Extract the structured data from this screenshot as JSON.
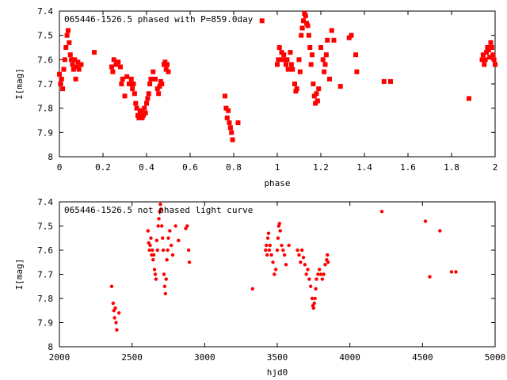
{
  "chart_data": [
    {
      "type": "scatter",
      "title": "065446-1526.5 phased with P=859.0day",
      "xlabel": "phase",
      "ylabel": "I[mag]",
      "xlim": [
        0,
        2
      ],
      "ylim": [
        7.4,
        8.0
      ],
      "y_inverted": true,
      "xticks": [
        0,
        0.2,
        0.4,
        0.6,
        0.8,
        1,
        1.2,
        1.4,
        1.6,
        1.8,
        2
      ],
      "xtick_labels": [
        "0",
        "0.2",
        "0.4",
        "0.6",
        "0.8",
        "1",
        "1.2",
        "1.4",
        "1.6",
        "1.8",
        "2"
      ],
      "yticks": [
        7.4,
        7.5,
        7.6,
        7.7,
        7.8,
        7.9,
        8.0
      ],
      "ytick_labels": [
        "7.4",
        "7.5",
        "7.6",
        "7.7",
        "7.8",
        "7.9",
        "8"
      ],
      "marker_color": "#ff0000",
      "grid": false,
      "series": [
        {
          "points": [
            [
              0.0,
              7.66
            ],
            [
              0.005,
              7.7
            ],
            [
              0.01,
              7.68
            ],
            [
              0.015,
              7.72
            ],
            [
              0.02,
              7.64
            ],
            [
              0.025,
              7.6
            ],
            [
              0.03,
              7.55
            ],
            [
              0.035,
              7.5
            ],
            [
              0.04,
              7.48
            ],
            [
              0.045,
              7.53
            ],
            [
              0.05,
              7.58
            ],
            [
              0.055,
              7.6
            ],
            [
              0.06,
              7.62
            ],
            [
              0.065,
              7.64
            ],
            [
              0.07,
              7.6
            ],
            [
              0.075,
              7.68
            ],
            [
              0.08,
              7.63
            ],
            [
              0.085,
              7.61
            ],
            [
              0.09,
              7.64
            ],
            [
              0.1,
              7.62
            ],
            [
              0.16,
              7.57
            ],
            [
              0.24,
              7.63
            ],
            [
              0.245,
              7.65
            ],
            [
              0.25,
              7.6
            ],
            [
              0.26,
              7.62
            ],
            [
              0.27,
              7.61
            ],
            [
              0.28,
              7.63
            ],
            [
              0.285,
              7.7
            ],
            [
              0.29,
              7.68
            ],
            [
              0.3,
              7.75
            ],
            [
              0.31,
              7.67
            ],
            [
              0.32,
              7.7
            ],
            [
              0.33,
              7.68
            ],
            [
              0.335,
              7.72
            ],
            [
              0.34,
              7.7
            ],
            [
              0.345,
              7.74
            ],
            [
              0.35,
              7.78
            ],
            [
              0.355,
              7.8
            ],
            [
              0.36,
              7.83
            ],
            [
              0.365,
              7.84
            ],
            [
              0.37,
              7.82
            ],
            [
              0.375,
              7.81
            ],
            [
              0.38,
              7.84
            ],
            [
              0.385,
              7.83
            ],
            [
              0.39,
              7.8
            ],
            [
              0.395,
              7.82
            ],
            [
              0.4,
              7.78
            ],
            [
              0.405,
              7.76
            ],
            [
              0.41,
              7.74
            ],
            [
              0.415,
              7.7
            ],
            [
              0.42,
              7.68
            ],
            [
              0.43,
              7.65
            ],
            [
              0.44,
              7.68
            ],
            [
              0.45,
              7.72
            ],
            [
              0.455,
              7.74
            ],
            [
              0.46,
              7.71
            ],
            [
              0.465,
              7.69
            ],
            [
              0.47,
              7.7
            ],
            [
              0.48,
              7.62
            ],
            [
              0.485,
              7.61
            ],
            [
              0.49,
              7.64
            ],
            [
              0.495,
              7.62
            ],
            [
              0.5,
              7.65
            ],
            [
              0.76,
              7.75
            ],
            [
              0.765,
              7.8
            ],
            [
              0.77,
              7.84
            ],
            [
              0.775,
              7.81
            ],
            [
              0.78,
              7.86
            ],
            [
              0.785,
              7.88
            ],
            [
              0.79,
              7.9
            ],
            [
              0.795,
              7.93
            ],
            [
              0.82,
              7.86
            ],
            [
              0.93,
              7.44
            ],
            [
              1.0,
              7.62
            ],
            [
              1.005,
              7.6
            ],
            [
              1.01,
              7.55
            ],
            [
              1.02,
              7.57
            ],
            [
              1.025,
              7.6
            ],
            [
              1.03,
              7.58
            ],
            [
              1.04,
              7.62
            ],
            [
              1.045,
              7.6
            ],
            [
              1.05,
              7.64
            ],
            [
              1.06,
              7.57
            ],
            [
              1.065,
              7.62
            ],
            [
              1.07,
              7.64
            ],
            [
              1.08,
              7.7
            ],
            [
              1.085,
              7.73
            ],
            [
              1.09,
              7.72
            ],
            [
              1.1,
              7.6
            ],
            [
              1.105,
              7.65
            ],
            [
              1.11,
              7.5
            ],
            [
              1.115,
              7.47
            ],
            [
              1.12,
              7.44
            ],
            [
              1.125,
              7.41
            ],
            [
              1.13,
              7.42
            ],
            [
              1.135,
              7.45
            ],
            [
              1.14,
              7.46
            ],
            [
              1.145,
              7.5
            ],
            [
              1.15,
              7.55
            ],
            [
              1.155,
              7.62
            ],
            [
              1.16,
              7.58
            ],
            [
              1.165,
              7.7
            ],
            [
              1.17,
              7.75
            ],
            [
              1.175,
              7.78
            ],
            [
              1.18,
              7.74
            ],
            [
              1.185,
              7.77
            ],
            [
              1.19,
              7.72
            ],
            [
              1.2,
              7.55
            ],
            [
              1.21,
              7.6
            ],
            [
              1.215,
              7.65
            ],
            [
              1.22,
              7.62
            ],
            [
              1.225,
              7.58
            ],
            [
              1.23,
              7.52
            ],
            [
              1.24,
              7.68
            ],
            [
              1.25,
              7.48
            ],
            [
              1.26,
              7.52
            ],
            [
              1.29,
              7.71
            ],
            [
              1.33,
              7.51
            ],
            [
              1.34,
              7.5
            ],
            [
              1.36,
              7.58
            ],
            [
              1.365,
              7.65
            ],
            [
              1.49,
              7.69
            ],
            [
              1.52,
              7.69
            ],
            [
              1.88,
              7.76
            ],
            [
              1.94,
              7.6
            ],
            [
              1.945,
              7.58
            ],
            [
              1.95,
              7.62
            ],
            [
              1.955,
              7.6
            ],
            [
              1.96,
              7.57
            ],
            [
              1.965,
              7.55
            ],
            [
              1.97,
              7.56
            ],
            [
              1.975,
              7.59
            ],
            [
              1.98,
              7.53
            ],
            [
              1.985,
              7.55
            ],
            [
              1.99,
              7.58
            ],
            [
              1.995,
              7.6
            ],
            [
              2.0,
              7.62
            ]
          ]
        }
      ]
    },
    {
      "type": "scatter",
      "title": "065446-1526.5 not phased light curve",
      "xlabel": "hjd0",
      "ylabel": "I[mag]",
      "xlim": [
        2000,
        5000
      ],
      "ylim": [
        7.4,
        8.0
      ],
      "y_inverted": true,
      "xticks": [
        2000,
        2500,
        3000,
        3500,
        4000,
        4500,
        5000
      ],
      "xtick_labels": [
        "2000",
        "2500",
        "3000",
        "3500",
        "4000",
        "4500",
        "5000"
      ],
      "yticks": [
        7.4,
        7.5,
        7.6,
        7.7,
        7.8,
        7.9,
        8.0
      ],
      "ytick_labels": [
        "7.4",
        "7.5",
        "7.6",
        "7.7",
        "7.8",
        "7.9",
        "8"
      ],
      "marker_color": "#ff0000",
      "grid": false,
      "series": [
        {
          "points": [
            [
              2360,
              7.75
            ],
            [
              2370,
              7.82
            ],
            [
              2375,
              7.85
            ],
            [
              2380,
              7.88
            ],
            [
              2385,
              7.84
            ],
            [
              2390,
              7.9
            ],
            [
              2395,
              7.93
            ],
            [
              2410,
              7.86
            ],
            [
              2610,
              7.52
            ],
            [
              2615,
              7.57
            ],
            [
              2620,
              7.6
            ],
            [
              2625,
              7.58
            ],
            [
              2630,
              7.55
            ],
            [
              2635,
              7.62
            ],
            [
              2640,
              7.6
            ],
            [
              2645,
              7.64
            ],
            [
              2650,
              7.62
            ],
            [
              2655,
              7.68
            ],
            [
              2660,
              7.7
            ],
            [
              2665,
              7.72
            ],
            [
              2670,
              7.56
            ],
            [
              2675,
              7.6
            ],
            [
              2680,
              7.5
            ],
            [
              2685,
              7.47
            ],
            [
              2690,
              7.44
            ],
            [
              2695,
              7.41
            ],
            [
              2700,
              7.43
            ],
            [
              2705,
              7.5
            ],
            [
              2710,
              7.55
            ],
            [
              2715,
              7.6
            ],
            [
              2720,
              7.7
            ],
            [
              2725,
              7.75
            ],
            [
              2730,
              7.78
            ],
            [
              2735,
              7.72
            ],
            [
              2740,
              7.64
            ],
            [
              2745,
              7.6
            ],
            [
              2750,
              7.55
            ],
            [
              2760,
              7.52
            ],
            [
              2770,
              7.58
            ],
            [
              2780,
              7.62
            ],
            [
              2800,
              7.5
            ],
            [
              2820,
              7.56
            ],
            [
              2870,
              7.51
            ],
            [
              2880,
              7.5
            ],
            [
              2890,
              7.6
            ],
            [
              2895,
              7.65
            ],
            [
              3330,
              7.76
            ],
            [
              3420,
              7.6
            ],
            [
              3425,
              7.58
            ],
            [
              3430,
              7.62
            ],
            [
              3435,
              7.55
            ],
            [
              3440,
              7.53
            ],
            [
              3445,
              7.6
            ],
            [
              3450,
              7.58
            ],
            [
              3460,
              7.62
            ],
            [
              3470,
              7.65
            ],
            [
              3480,
              7.7
            ],
            [
              3490,
              7.68
            ],
            [
              3500,
              7.6
            ],
            [
              3505,
              7.55
            ],
            [
              3510,
              7.5
            ],
            [
              3515,
              7.49
            ],
            [
              3520,
              7.52
            ],
            [
              3530,
              7.58
            ],
            [
              3540,
              7.6
            ],
            [
              3550,
              7.62
            ],
            [
              3560,
              7.66
            ],
            [
              3580,
              7.58
            ],
            [
              3640,
              7.6
            ],
            [
              3650,
              7.62
            ],
            [
              3660,
              7.65
            ],
            [
              3670,
              7.6
            ],
            [
              3680,
              7.63
            ],
            [
              3690,
              7.66
            ],
            [
              3700,
              7.7
            ],
            [
              3710,
              7.68
            ],
            [
              3720,
              7.72
            ],
            [
              3730,
              7.75
            ],
            [
              3740,
              7.8
            ],
            [
              3745,
              7.83
            ],
            [
              3750,
              7.84
            ],
            [
              3755,
              7.82
            ],
            [
              3760,
              7.8
            ],
            [
              3765,
              7.76
            ],
            [
              3770,
              7.72
            ],
            [
              3780,
              7.7
            ],
            [
              3790,
              7.68
            ],
            [
              3800,
              7.7
            ],
            [
              3810,
              7.72
            ],
            [
              3820,
              7.7
            ],
            [
              3830,
              7.66
            ],
            [
              3840,
              7.64
            ],
            [
              3845,
              7.62
            ],
            [
              3850,
              7.65
            ],
            [
              4220,
              7.44
            ],
            [
              4520,
              7.48
            ],
            [
              4550,
              7.71
            ],
            [
              4620,
              7.52
            ],
            [
              4700,
              7.69
            ],
            [
              4730,
              7.69
            ]
          ]
        }
      ]
    }
  ]
}
